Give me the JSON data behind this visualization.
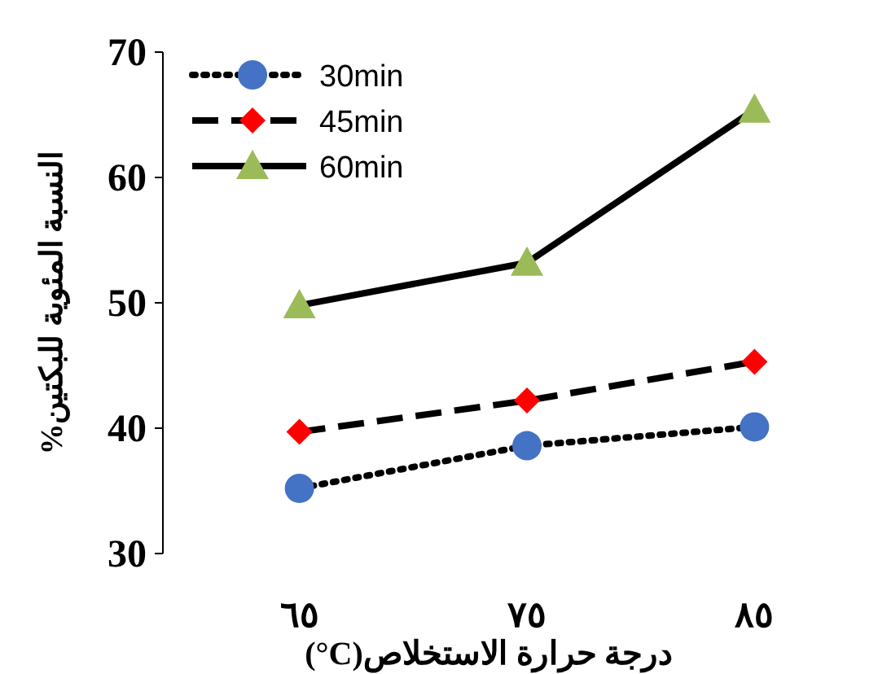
{
  "chart_data": {
    "type": "line",
    "xlabel": "درجة حرارة الاستخلاص(C°)",
    "ylabel": "النسبة المئوية للبكتين%",
    "categories": [
      "٦٥",
      "٧٥",
      "٨٥"
    ],
    "series": [
      {
        "name": "30min",
        "color": "#4472c4",
        "marker": "circle",
        "line_style": "dotted",
        "values": [
          35.2,
          38.6,
          40.1
        ]
      },
      {
        "name": "45min",
        "color": "#ff0000",
        "marker": "diamond",
        "line_style": "dashed",
        "values": [
          39.7,
          42.2,
          45.3
        ]
      },
      {
        "name": "60min",
        "color": "#9bbb59",
        "marker": "triangle",
        "line_style": "solid",
        "values": [
          49.8,
          53.2,
          65.4
        ]
      }
    ],
    "ylim": [
      30,
      70
    ],
    "yticks": [
      30,
      40,
      50,
      60,
      70
    ],
    "grid": false,
    "legend": "top left"
  }
}
